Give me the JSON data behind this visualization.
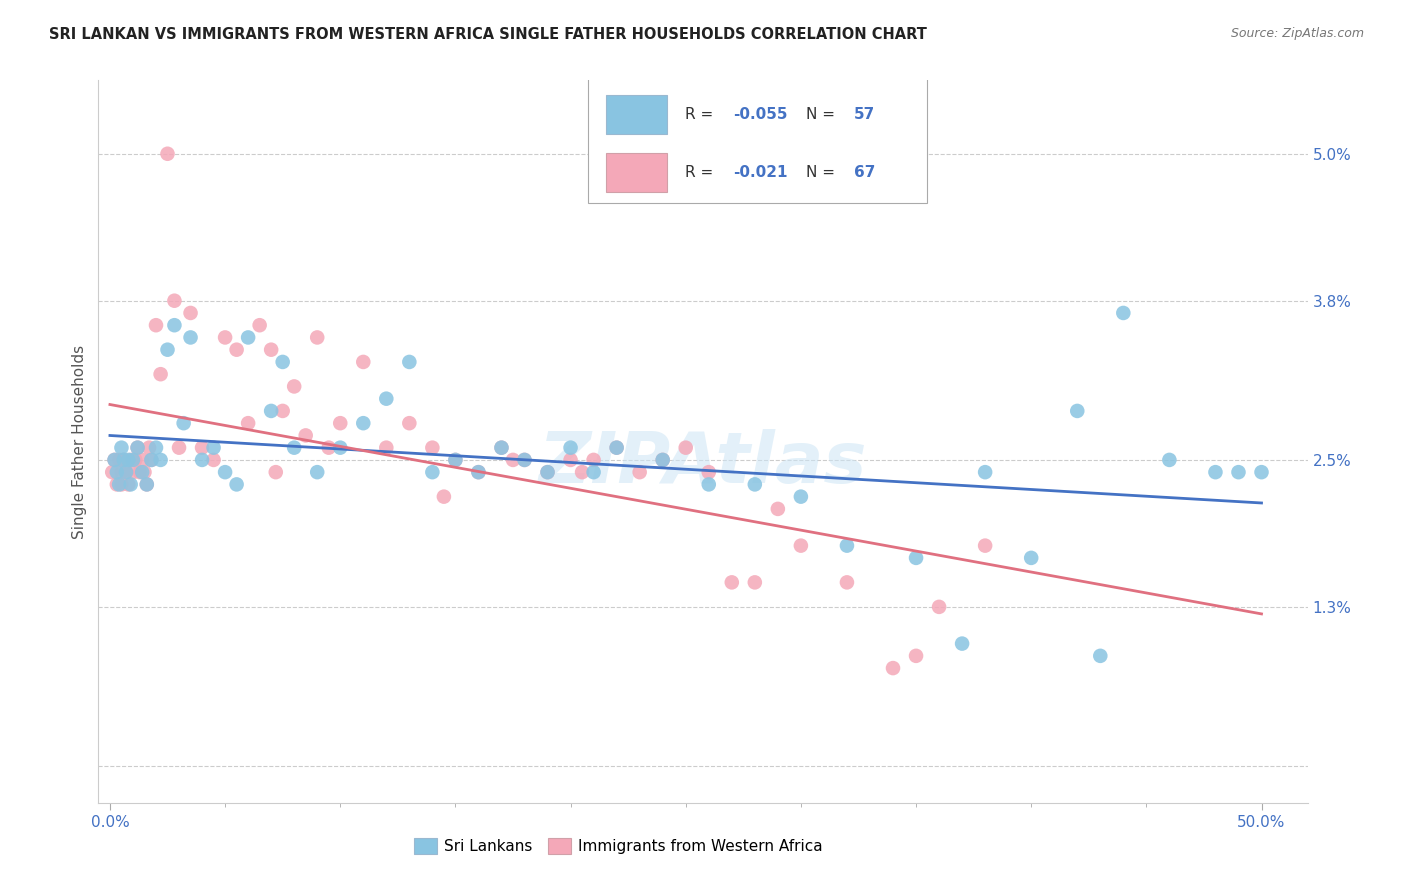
{
  "title": "SRI LANKAN VS IMMIGRANTS FROM WESTERN AFRICA SINGLE FATHER HOUSEHOLDS CORRELATION CHART",
  "source": "Source: ZipAtlas.com",
  "ylabel": "Single Father Households",
  "ytick_vals": [
    0.0,
    1.3,
    2.5,
    3.8,
    5.0
  ],
  "ytick_labels": [
    "",
    "1.3%",
    "2.5%",
    "3.8%",
    "5.0%"
  ],
  "xtick_vals": [
    0,
    50
  ],
  "xtick_labels": [
    "0.0%",
    "50.0%"
  ],
  "ymin": -0.3,
  "ymax": 5.6,
  "xmin": -0.5,
  "xmax": 52.0,
  "watermark": "ZIPAtlas",
  "sl_color": "#89c4e1",
  "wa_color": "#f4a8b8",
  "sl_line_color": "#4472c4",
  "wa_line_color": "#e07080",
  "background_color": "#ffffff",
  "grid_color": "#cccccc",
  "title_fontsize": 10.5,
  "tick_color": "#4472c4",
  "legend_R_sl": "-0.055",
  "legend_N_sl": "57",
  "legend_R_wa": "-0.021",
  "legend_N_wa": "67",
  "sl_x": [
    0.2,
    0.3,
    0.4,
    0.5,
    0.6,
    0.7,
    0.8,
    0.9,
    1.0,
    1.2,
    1.4,
    1.6,
    1.8,
    2.0,
    2.2,
    2.5,
    2.8,
    3.2,
    3.5,
    4.0,
    4.5,
    5.0,
    5.5,
    6.0,
    7.0,
    7.5,
    8.0,
    9.0,
    10.0,
    11.0,
    12.0,
    13.0,
    14.0,
    15.0,
    16.0,
    17.0,
    18.0,
    19.0,
    20.0,
    21.0,
    22.0,
    24.0,
    26.0,
    28.0,
    30.0,
    32.0,
    35.0,
    38.0,
    40.0,
    42.0,
    44.0,
    46.0,
    48.0,
    49.0,
    50.0,
    43.0,
    37.0
  ],
  "sl_y": [
    2.5,
    2.4,
    2.3,
    2.6,
    2.5,
    2.4,
    2.5,
    2.3,
    2.5,
    2.6,
    2.4,
    2.3,
    2.5,
    2.6,
    2.5,
    3.4,
    3.6,
    2.8,
    3.5,
    2.5,
    2.6,
    2.4,
    2.3,
    3.5,
    2.9,
    3.3,
    2.6,
    2.4,
    2.6,
    2.8,
    3.0,
    3.3,
    2.4,
    2.5,
    2.4,
    2.6,
    2.5,
    2.4,
    2.6,
    2.4,
    2.6,
    2.5,
    2.3,
    2.3,
    2.2,
    1.8,
    1.7,
    2.4,
    1.7,
    2.9,
    3.7,
    2.5,
    2.4,
    2.4,
    2.4,
    0.9,
    1.0
  ],
  "wa_x": [
    0.1,
    0.2,
    0.3,
    0.4,
    0.5,
    0.5,
    0.6,
    0.7,
    0.8,
    0.9,
    1.0,
    1.1,
    1.2,
    1.3,
    1.4,
    1.5,
    1.6,
    1.7,
    1.8,
    2.0,
    2.2,
    2.5,
    2.8,
    3.0,
    3.5,
    4.0,
    4.5,
    5.0,
    5.5,
    6.0,
    6.5,
    7.0,
    7.5,
    8.0,
    8.5,
    9.0,
    9.5,
    10.0,
    11.0,
    12.0,
    13.0,
    14.0,
    15.0,
    16.0,
    17.0,
    18.0,
    19.0,
    20.0,
    21.0,
    22.0,
    23.0,
    24.0,
    25.0,
    26.0,
    27.0,
    28.0,
    30.0,
    32.0,
    34.0,
    35.0,
    36.0,
    38.0,
    17.5,
    29.0,
    7.2,
    14.5,
    20.5
  ],
  "wa_y": [
    2.4,
    2.5,
    2.3,
    2.5,
    2.4,
    2.3,
    2.5,
    2.4,
    2.3,
    2.5,
    2.4,
    2.5,
    2.6,
    2.4,
    2.5,
    2.4,
    2.3,
    2.6,
    2.5,
    3.6,
    3.2,
    5.0,
    3.8,
    2.6,
    3.7,
    2.6,
    2.5,
    3.5,
    3.4,
    2.8,
    3.6,
    3.4,
    2.9,
    3.1,
    2.7,
    3.5,
    2.6,
    2.8,
    3.3,
    2.6,
    2.8,
    2.6,
    2.5,
    2.4,
    2.6,
    2.5,
    2.4,
    2.5,
    2.5,
    2.6,
    2.4,
    2.5,
    2.6,
    2.4,
    1.5,
    1.5,
    1.8,
    1.5,
    0.8,
    0.9,
    1.3,
    1.8,
    2.5,
    2.1,
    2.4,
    2.2,
    2.4
  ]
}
